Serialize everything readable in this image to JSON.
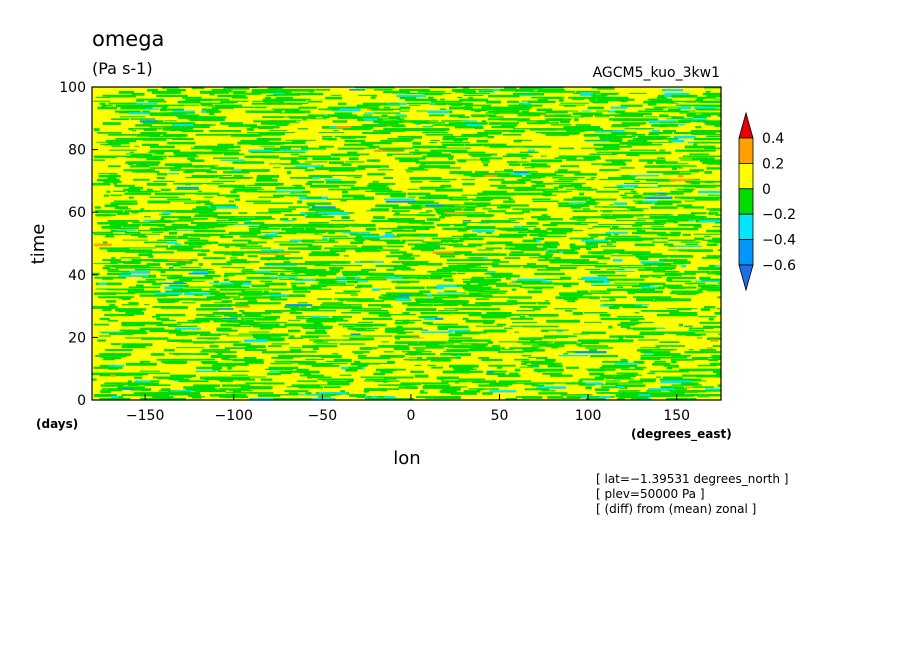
{
  "chart_data": {
    "type": "heatmap",
    "title": "omega",
    "units": "(Pa s-1)",
    "model_label": "AGCM5_kuo_3kw1",
    "xlabel": "lon",
    "ylabel": "time",
    "x_units": "(degrees_east)",
    "y_units": "(days)",
    "xlim": [
      -180,
      175
    ],
    "ylim": [
      0,
      100
    ],
    "x_ticks": [
      -150,
      -100,
      -50,
      0,
      50,
      100,
      150
    ],
    "x_tick_labels": [
      "−150",
      "−100",
      "−50",
      "0",
      "50",
      "100",
      "150"
    ],
    "y_ticks": [
      0,
      20,
      40,
      60,
      80,
      100
    ],
    "y_tick_labels": [
      "0",
      "20",
      "40",
      "60",
      "80",
      "100"
    ],
    "grid": false,
    "colorbar": {
      "placement": "right",
      "levels": [
        -0.6,
        -0.4,
        -0.2,
        0,
        0.2,
        0.4
      ],
      "level_labels": [
        "−0.6",
        "−0.4",
        "−0.2",
        "0",
        "0.2",
        "0.4"
      ],
      "colors": [
        "#1e6ee6",
        "#0096fa",
        "#00e6ff",
        "#00dc00",
        "#ffff00",
        "#ffa000",
        "#e60000"
      ],
      "extend": "both"
    },
    "annotations": [
      "[ lat=−1.39531 degrees_north ]",
      "[ plev=50000 Pa ]",
      "[ (diff) from (mean) zonal ]"
    ]
  }
}
